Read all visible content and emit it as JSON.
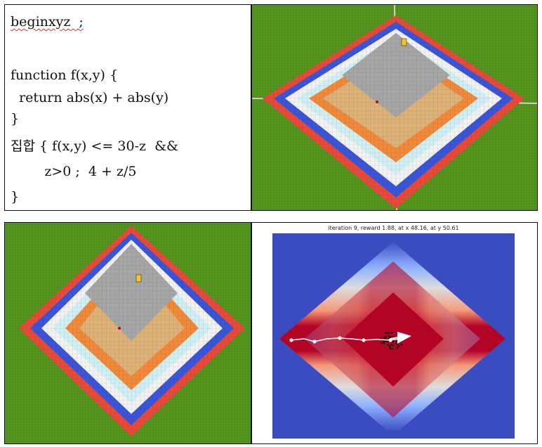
{
  "code_panel": {
    "lines": [
      "beginxyz  ;",
      "",
      "function f(x,y) {",
      "  return abs(x) + abs(y)",
      "}",
      "집합 { f(x,y) <= 30-z  &&",
      "        z>0 ;  4 + z/5",
      "}"
    ]
  },
  "figure": {
    "title": "iteration 9, reward 1.88, at x 48.16, at y 50.61"
  },
  "colors": {
    "grass": "#4f8f1a",
    "red_layer": "#e84a3a",
    "blue_layer": "#3a55d8",
    "white_layer": "#f2f2f2",
    "cyan_layer": "#cfeff2",
    "orange_layer": "#f08a3a",
    "tan_layer": "#ddb178",
    "gray_layer": "#a6a6a6",
    "heatmap_outer": "#3b4cc0",
    "heatmap_core": "#b40426",
    "path_color": "#ffffff"
  },
  "chart_data": {
    "type": "heatmap",
    "title": "iteration 9, reward 1.88, at x 48.16, at y 50.61",
    "current_x": 48.16,
    "current_y": 50.61,
    "reward": 1.88,
    "iteration": 9
  }
}
